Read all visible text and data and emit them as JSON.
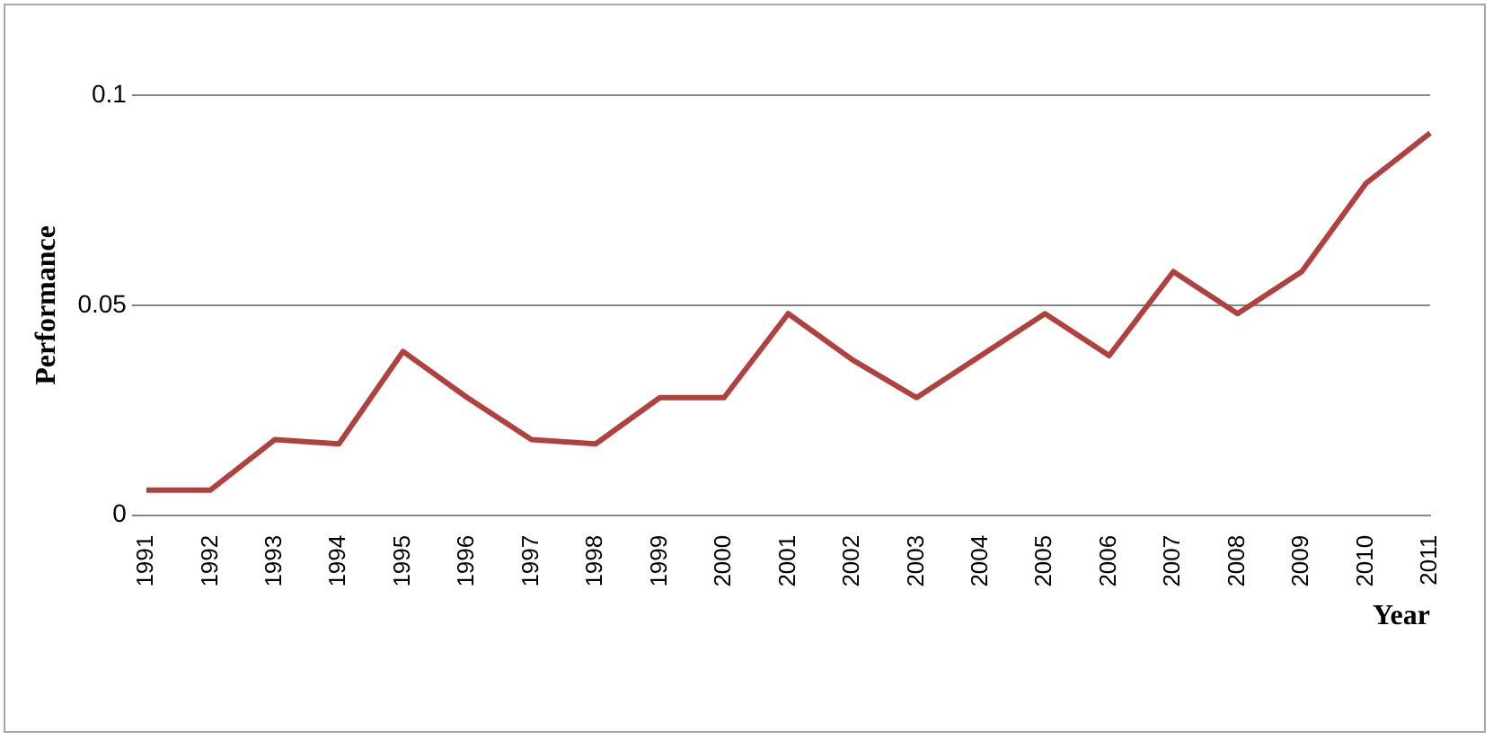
{
  "chart_data": {
    "type": "line",
    "xlabel": "Year",
    "ylabel": "Performance",
    "categories": [
      "1991",
      "1992",
      "1993",
      "1994",
      "1995",
      "1996",
      "1997",
      "1998",
      "1999",
      "2000",
      "2001",
      "2002",
      "2003",
      "2004",
      "2005",
      "2006",
      "2007",
      "2008",
      "2009",
      "2010",
      "2011"
    ],
    "series": [
      {
        "color": "#b0413e",
        "values": [
          0.006,
          0.006,
          0.018,
          0.017,
          0.039,
          0.028,
          0.018,
          0.017,
          0.028,
          0.028,
          0.048,
          0.037,
          0.028,
          0.038,
          0.048,
          0.038,
          0.058,
          0.048,
          0.058,
          0.079,
          0.091
        ]
      }
    ],
    "ylim": [
      0,
      0.1
    ],
    "yticks": [
      0,
      0.05,
      0.1
    ],
    "grid": "y",
    "legend": false,
    "marker": "none",
    "line_style": "solid"
  }
}
